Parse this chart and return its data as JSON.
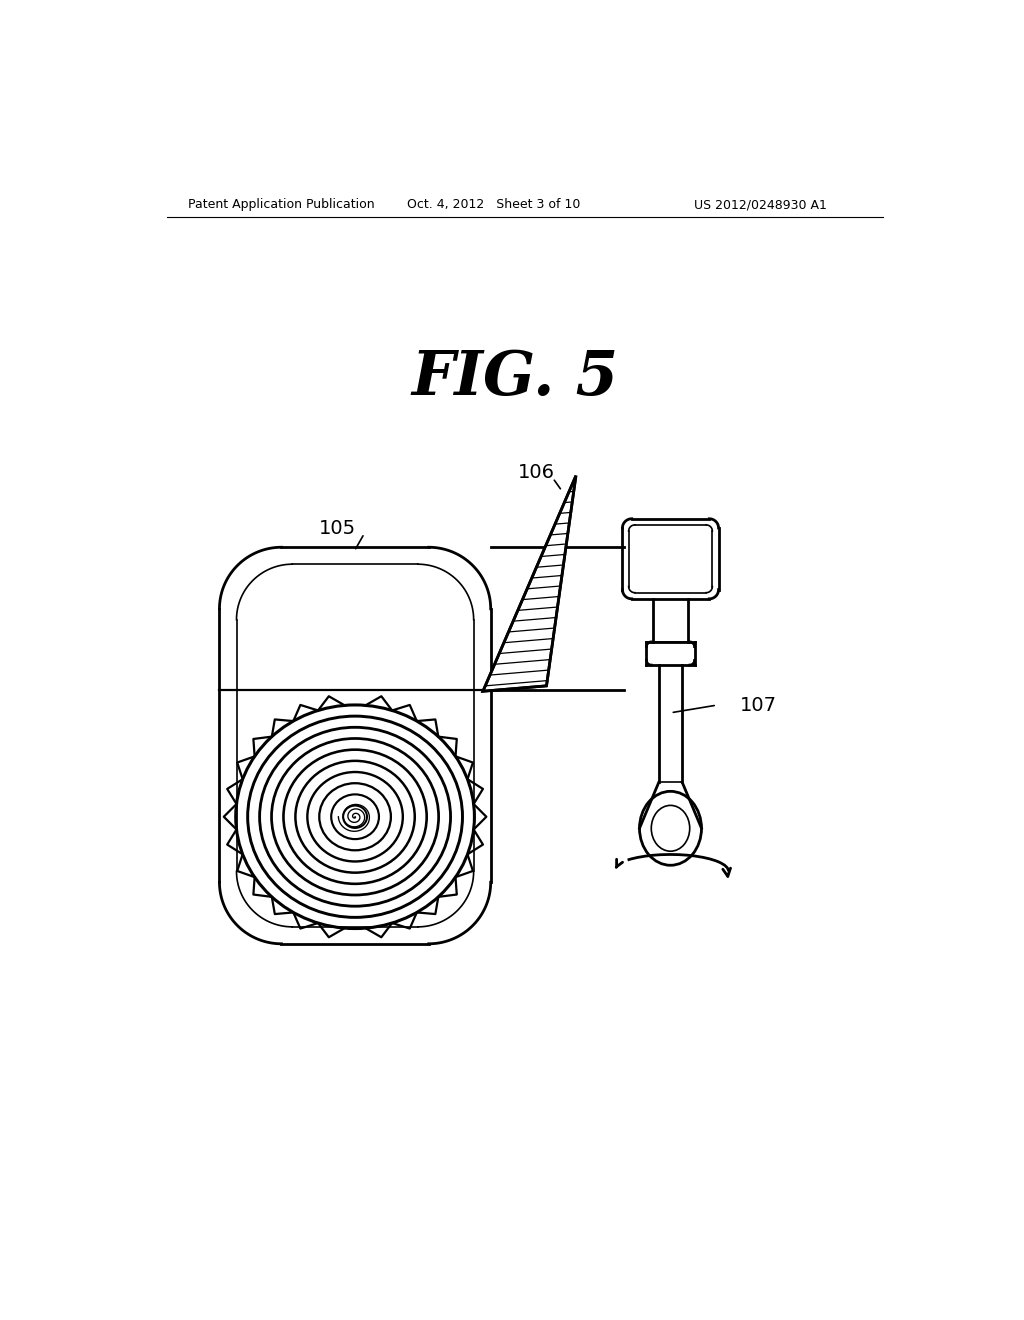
{
  "background_color": "#ffffff",
  "header_left": "Patent Application Publication",
  "header_mid": "Oct. 4, 2012   Sheet 3 of 10",
  "header_right": "US 2012/0248930 A1",
  "fig_label": "FIG. 5",
  "label_105": "105",
  "label_106": "106",
  "label_107": "107",
  "line_color": "#000000",
  "lw": 2.0,
  "lw_thin": 1.2,
  "lw_med": 1.6
}
